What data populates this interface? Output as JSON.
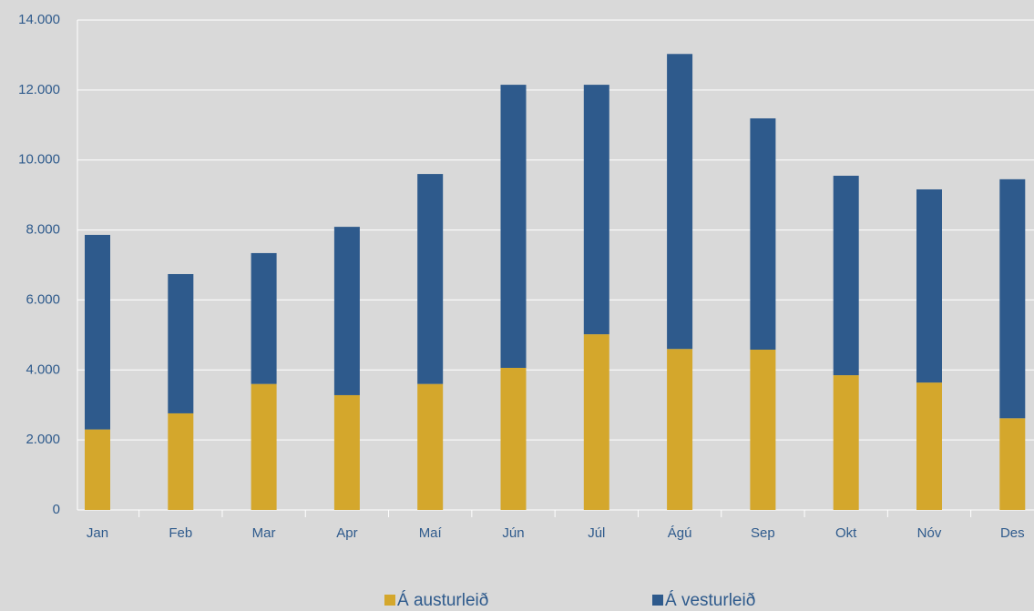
{
  "chart_data": {
    "type": "stacked_bar",
    "categories": [
      "Jan",
      "Feb",
      "Mar",
      "Apr",
      "Maí",
      "Jún",
      "Júl",
      "Ágú",
      "Sep",
      "Okt",
      "Nóv",
      "Des"
    ],
    "series": [
      {
        "name": "Á austurleið",
        "color": "#d4a72c",
        "values": [
          2300,
          2760,
          3600,
          3280,
          3600,
          4060,
          5020,
          4600,
          4580,
          3850,
          3640,
          2620
        ]
      },
      {
        "name": "Á vesturleið",
        "color": "#2e5a8c",
        "values": [
          5560,
          3980,
          3740,
          4810,
          6000,
          8090,
          7130,
          8430,
          6610,
          5700,
          5520,
          6830
        ]
      }
    ],
    "ylim": [
      0,
      14000
    ],
    "yticks": [
      0,
      {
        "value": 2000,
        "label": "2.000"
      },
      {
        "value": 4000,
        "label": "4.000"
      },
      {
        "value": 6000,
        "label": "6.000"
      },
      {
        "value": 8000,
        "label": "8.000"
      },
      {
        "value": 10000,
        "label": "10.000"
      },
      {
        "value": 12000,
        "label": "12.000"
      },
      {
        "value": 14000,
        "label": "14.000"
      }
    ],
    "grid": true,
    "legend": "bottom"
  }
}
